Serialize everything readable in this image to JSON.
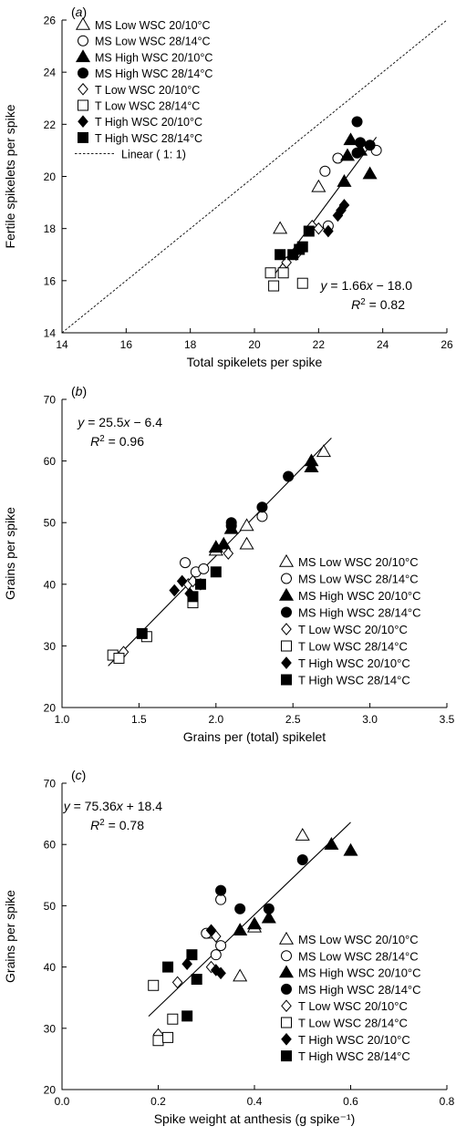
{
  "legend_entries": [
    {
      "label": "MS Low WSC 20/10°C",
      "marker": "tri-open"
    },
    {
      "label": "MS Low WSC 28/14°C",
      "marker": "circle-open"
    },
    {
      "label": "MS High WSC 20/10°C",
      "marker": "tri-filled"
    },
    {
      "label": "MS High WSC 28/14°C",
      "marker": "circle-filled"
    },
    {
      "label": "T Low WSC 20/10°C",
      "marker": "diamond-open"
    },
    {
      "label": "T Low WSC 28/14°C",
      "marker": "square-open"
    },
    {
      "label": "T High WSC 20/10°C",
      "marker": "diamond-filled"
    },
    {
      "label": "T High WSC 28/14°C",
      "marker": "square-filled"
    }
  ],
  "chart_data": [
    {
      "type": "scatter",
      "panel_label": "(a)",
      "xlabel": "Total spikelets per spike",
      "ylabel": "Fertile spikelets per spike",
      "xlim": [
        14,
        26
      ],
      "ylim": [
        14,
        26
      ],
      "xticks": [
        "14",
        "16",
        "18",
        "20",
        "22",
        "24",
        "26"
      ],
      "yticks": [
        "14",
        "16",
        "18",
        "20",
        "22",
        "24",
        "26"
      ],
      "equation": "y = 1.66x − 18.0",
      "r2": "R² = 0.82",
      "fit": {
        "slope": 1.66,
        "intercept": -18.0,
        "xrange": [
          20.6,
          23.8
        ]
      },
      "one_to_one": {
        "label": "Linear ( 1: 1)",
        "xrange": [
          14,
          26
        ]
      },
      "legend_position": "top-left",
      "series": [
        {
          "name": "MS Low WSC 20/10°C",
          "marker": "tri-open",
          "points": [
            [
              20.8,
              18.0
            ],
            [
              22.0,
              19.6
            ]
          ]
        },
        {
          "name": "MS Low WSC 28/14°C",
          "marker": "circle-open",
          "points": [
            [
              22.2,
              20.2
            ],
            [
              22.6,
              20.7
            ],
            [
              23.8,
              21.0
            ],
            [
              22.3,
              18.1
            ]
          ]
        },
        {
          "name": "MS High WSC 20/10°C",
          "marker": "tri-filled",
          "points": [
            [
              23.0,
              21.4
            ],
            [
              23.3,
              21.0
            ],
            [
              23.6,
              20.1
            ],
            [
              22.9,
              20.8
            ],
            [
              22.8,
              19.8
            ]
          ]
        },
        {
          "name": "MS High WSC 28/14°C",
          "marker": "circle-filled",
          "points": [
            [
              23.2,
              22.1
            ],
            [
              23.3,
              21.3
            ],
            [
              23.6,
              21.2
            ],
            [
              23.2,
              20.9
            ]
          ]
        },
        {
          "name": "T Low WSC 20/10°C",
          "marker": "diamond-open",
          "points": [
            [
              21.3,
              17.0
            ],
            [
              21.0,
              16.7
            ],
            [
              21.8,
              18.1
            ],
            [
              22.0,
              18.0
            ]
          ]
        },
        {
          "name": "T Low WSC 28/14°C",
          "marker": "square-open",
          "points": [
            [
              20.5,
              16.3
            ],
            [
              20.6,
              15.8
            ],
            [
              20.9,
              16.3
            ],
            [
              21.5,
              15.9
            ]
          ]
        },
        {
          "name": "T High WSC 20/10°C",
          "marker": "diamond-filled",
          "points": [
            [
              22.3,
              17.9
            ],
            [
              22.6,
              18.5
            ],
            [
              22.8,
              18.9
            ],
            [
              22.7,
              18.7
            ]
          ]
        },
        {
          "name": "T High WSC 28/14°C",
          "marker": "square-filled",
          "points": [
            [
              20.8,
              17.0
            ],
            [
              21.2,
              17.0
            ],
            [
              21.4,
              17.2
            ],
            [
              21.5,
              17.3
            ],
            [
              21.7,
              17.9
            ]
          ]
        }
      ]
    },
    {
      "type": "scatter",
      "panel_label": "(b)",
      "xlabel": "Grains per (total) spikelet",
      "ylabel": "Grains per spike",
      "xlim": [
        1.0,
        3.5
      ],
      "ylim": [
        20,
        70
      ],
      "xticks": [
        "1.0",
        "1.5",
        "2.0",
        "2.5",
        "3.0",
        "3.5"
      ],
      "yticks": [
        "20",
        "30",
        "40",
        "50",
        "60",
        "70"
      ],
      "equation": "y = 25.5x − 6.4",
      "r2": "R² = 0.96",
      "fit": {
        "slope": 25.5,
        "intercept": -6.4,
        "xrange": [
          1.3,
          2.75
        ]
      },
      "legend_position": "bottom-right",
      "series": [
        {
          "name": "MS Low WSC 20/10°C",
          "marker": "tri-open",
          "points": [
            [
              2.7,
              61.5
            ],
            [
              2.2,
              49.5
            ],
            [
              2.2,
              46.5
            ],
            [
              2.0,
              45.5
            ]
          ]
        },
        {
          "name": "MS Low WSC 28/14°C",
          "marker": "circle-open",
          "points": [
            [
              2.3,
              51.0
            ],
            [
              1.8,
              43.5
            ],
            [
              1.87,
              42.0
            ],
            [
              1.92,
              42.5
            ]
          ]
        },
        {
          "name": "MS High WSC 20/10°C",
          "marker": "tri-filled",
          "points": [
            [
              2.62,
              60.0
            ],
            [
              2.62,
              59.0
            ],
            [
              2.1,
              49.0
            ],
            [
              2.0,
              46.0
            ],
            [
              2.05,
              46.5
            ]
          ]
        },
        {
          "name": "MS High WSC 28/14°C",
          "marker": "circle-filled",
          "points": [
            [
              2.47,
              57.5
            ],
            [
              2.3,
              52.5
            ],
            [
              2.1,
              50.0
            ],
            [
              2.1,
              49.5
            ]
          ]
        },
        {
          "name": "T Low WSC 20/10°C",
          "marker": "diamond-open",
          "points": [
            [
              1.4,
              29.0
            ],
            [
              2.08,
              45.0
            ],
            [
              1.82,
              40.0
            ],
            [
              1.85,
              40.5
            ]
          ]
        },
        {
          "name": "T Low WSC 28/14°C",
          "marker": "square-open",
          "points": [
            [
              1.33,
              28.5
            ],
            [
              1.37,
              28.0
            ],
            [
              1.55,
              31.5
            ],
            [
              1.85,
              37.0
            ]
          ]
        },
        {
          "name": "T High WSC 20/10°C",
          "marker": "diamond-filled",
          "points": [
            [
              1.78,
              40.5
            ],
            [
              1.73,
              39.0
            ],
            [
              1.83,
              38.5
            ],
            [
              1.9,
              40.0
            ]
          ]
        },
        {
          "name": "T High WSC 28/14°C",
          "marker": "square-filled",
          "points": [
            [
              1.52,
              32.0
            ],
            [
              1.85,
              38.0
            ],
            [
              1.9,
              40.0
            ],
            [
              2.0,
              42.0
            ]
          ]
        }
      ]
    },
    {
      "type": "scatter",
      "panel_label": "(c)",
      "xlabel": "Spike weight at anthesis (g spike⁻¹)",
      "ylabel": "Grains per spike",
      "xlim": [
        0.0,
        0.8
      ],
      "ylim": [
        20,
        70
      ],
      "xticks": [
        "0.0",
        "0.2",
        "0.4",
        "0.6",
        "0.8"
      ],
      "yticks": [
        "20",
        "30",
        "40",
        "50",
        "60",
        "70"
      ],
      "equation": "y = 75.36x + 18.4",
      "r2": "R² = 0.78",
      "fit": {
        "slope": 75.36,
        "intercept": 18.4,
        "xrange": [
          0.18,
          0.6
        ]
      },
      "legend_position": "bottom-right",
      "series": [
        {
          "name": "MS Low WSC 20/10°C",
          "marker": "tri-open",
          "points": [
            [
              0.5,
              61.5
            ],
            [
              0.4,
              46.5
            ],
            [
              0.31,
              45.5
            ],
            [
              0.37,
              38.5
            ]
          ]
        },
        {
          "name": "MS Low WSC 28/14°C",
          "marker": "circle-open",
          "points": [
            [
              0.33,
              51.0
            ],
            [
              0.3,
              45.5
            ],
            [
              0.33,
              43.5
            ],
            [
              0.32,
              42.0
            ]
          ]
        },
        {
          "name": "MS High WSC 20/10°C",
          "marker": "tri-filled",
          "points": [
            [
              0.56,
              60.0
            ],
            [
              0.6,
              59.0
            ],
            [
              0.43,
              48.0
            ],
            [
              0.37,
              46.0
            ],
            [
              0.4,
              47.0
            ]
          ]
        },
        {
          "name": "MS High WSC 28/14°C",
          "marker": "circle-filled",
          "points": [
            [
              0.5,
              57.5
            ],
            [
              0.33,
              52.5
            ],
            [
              0.37,
              49.5
            ],
            [
              0.43,
              49.5
            ]
          ]
        },
        {
          "name": "T Low WSC 20/10°C",
          "marker": "diamond-open",
          "points": [
            [
              0.2,
              29.0
            ],
            [
              0.32,
              45.0
            ],
            [
              0.24,
              37.5
            ],
            [
              0.31,
              40.0
            ]
          ]
        },
        {
          "name": "T Low WSC 28/14°C",
          "marker": "square-open",
          "points": [
            [
              0.19,
              37.0
            ],
            [
              0.2,
              28.0
            ],
            [
              0.22,
              28.5
            ],
            [
              0.23,
              31.5
            ]
          ]
        },
        {
          "name": "T High WSC 20/10°C",
          "marker": "diamond-filled",
          "points": [
            [
              0.31,
              46.0
            ],
            [
              0.26,
              40.5
            ],
            [
              0.32,
              39.5
            ],
            [
              0.33,
              39.0
            ]
          ]
        },
        {
          "name": "T High WSC 28/14°C",
          "marker": "square-filled",
          "points": [
            [
              0.22,
              40.0
            ],
            [
              0.27,
              42.0
            ],
            [
              0.28,
              38.0
            ],
            [
              0.26,
              32.0
            ]
          ]
        }
      ]
    }
  ]
}
